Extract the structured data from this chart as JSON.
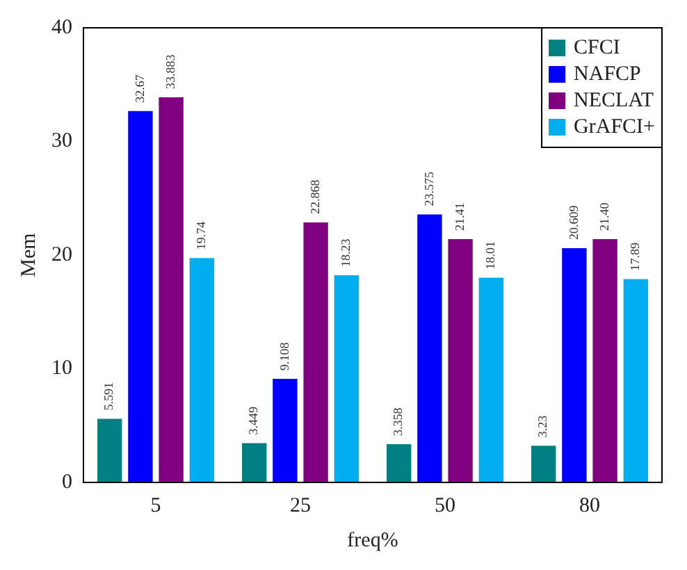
{
  "chart_data": {
    "type": "bar",
    "xlabel": "freq%",
    "ylabel": "Mem",
    "categories": [
      "5",
      "25",
      "50",
      "80"
    ],
    "series": [
      {
        "name": "CFCI",
        "color": "#008080",
        "values": [
          5.591,
          3.449,
          3.358,
          3.23
        ],
        "value_labels": [
          "5.591",
          "3.449",
          "3.358",
          "3.23"
        ]
      },
      {
        "name": "NAFCP",
        "color": "#0000ff",
        "values": [
          32.67,
          9.108,
          23.575,
          20.609
        ],
        "value_labels": [
          "32.67",
          "9.108",
          "23.575",
          "20.609"
        ]
      },
      {
        "name": "NECLAT",
        "color": "#800080",
        "values": [
          33.883,
          22.868,
          21.41,
          21.4
        ],
        "value_labels": [
          "33.883",
          "22.868",
          "21.41",
          "21.40"
        ]
      },
      {
        "name": "GrAFCI+",
        "color": "#00aeef",
        "values": [
          19.74,
          18.23,
          18.01,
          17.89
        ],
        "value_labels": [
          "19.74",
          "18.23",
          "18.01",
          "17.89"
        ]
      }
    ],
    "ylim": [
      0,
      40
    ],
    "yticks": [
      0,
      10,
      20,
      30,
      40
    ],
    "grid": false,
    "legend": "top right"
  }
}
